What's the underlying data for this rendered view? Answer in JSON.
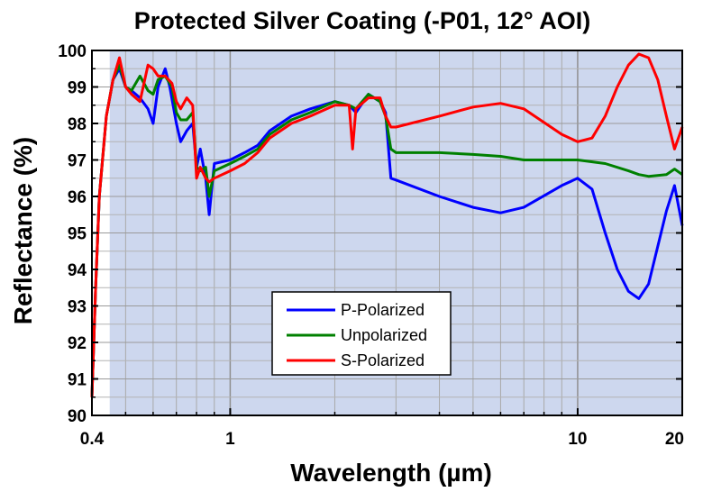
{
  "chart_data": {
    "type": "line",
    "title": "Protected Silver Coating (-P01, 12° AOI)",
    "xlabel": "Wavelength (µm)",
    "ylabel": "Reflectance (%)",
    "xscale": "log",
    "xlim": [
      0.4,
      20
    ],
    "ylim": [
      90,
      100
    ],
    "grid": true,
    "shaded_region": [
      0.45,
      20
    ],
    "xticks": [
      {
        "value": 0.4,
        "label": "0.4"
      },
      {
        "value": 1,
        "label": "1"
      },
      {
        "value": 10,
        "label": "10"
      },
      {
        "value": 20,
        "label": "20"
      }
    ],
    "yticks": [
      {
        "value": 90,
        "label": "90"
      },
      {
        "value": 91,
        "label": "91"
      },
      {
        "value": 92,
        "label": "92"
      },
      {
        "value": 93,
        "label": "93"
      },
      {
        "value": 94,
        "label": "94"
      },
      {
        "value": 95,
        "label": "95"
      },
      {
        "value": 96,
        "label": "96"
      },
      {
        "value": 97,
        "label": "97"
      },
      {
        "value": 98,
        "label": "98"
      },
      {
        "value": 99,
        "label": "99"
      },
      {
        "value": 100,
        "label": "100"
      }
    ],
    "legend_position": "bottom-center",
    "series": [
      {
        "name": "P-Polarized",
        "color": "#0000ff",
        "points": [
          [
            0.4,
            90.5
          ],
          [
            0.41,
            93.5
          ],
          [
            0.42,
            96.0
          ],
          [
            0.44,
            98.2
          ],
          [
            0.46,
            99.2
          ],
          [
            0.48,
            99.5
          ],
          [
            0.5,
            99.0
          ],
          [
            0.52,
            98.9
          ],
          [
            0.55,
            98.7
          ],
          [
            0.58,
            98.4
          ],
          [
            0.6,
            98.0
          ],
          [
            0.62,
            99.0
          ],
          [
            0.65,
            99.5
          ],
          [
            0.67,
            99.0
          ],
          [
            0.7,
            98.0
          ],
          [
            0.72,
            97.5
          ],
          [
            0.75,
            97.8
          ],
          [
            0.78,
            98.0
          ],
          [
            0.8,
            96.8
          ],
          [
            0.82,
            97.3
          ],
          [
            0.85,
            96.5
          ],
          [
            0.87,
            95.5
          ],
          [
            0.9,
            96.9
          ],
          [
            1.0,
            97.0
          ],
          [
            1.1,
            97.2
          ],
          [
            1.2,
            97.4
          ],
          [
            1.3,
            97.8
          ],
          [
            1.5,
            98.2
          ],
          [
            1.7,
            98.4
          ],
          [
            2.0,
            98.6
          ],
          [
            2.2,
            98.5
          ],
          [
            2.3,
            98.3
          ],
          [
            2.5,
            98.8
          ],
          [
            2.7,
            98.6
          ],
          [
            2.8,
            98.3
          ],
          [
            2.9,
            96.5
          ],
          [
            3.0,
            96.45
          ],
          [
            4.0,
            96.0
          ],
          [
            5.0,
            95.7
          ],
          [
            6.0,
            95.55
          ],
          [
            7.0,
            95.7
          ],
          [
            9.0,
            96.3
          ],
          [
            10.0,
            96.5
          ],
          [
            11.0,
            96.2
          ],
          [
            12.0,
            95.0
          ],
          [
            13.0,
            94.0
          ],
          [
            14.0,
            93.4
          ],
          [
            15.0,
            93.2
          ],
          [
            16.0,
            93.6
          ],
          [
            18.0,
            95.6
          ],
          [
            19.0,
            96.3
          ],
          [
            20.0,
            95.2
          ]
        ]
      },
      {
        "name": "Unpolarized",
        "color": "#008000",
        "points": [
          [
            0.4,
            90.5
          ],
          [
            0.41,
            93.5
          ],
          [
            0.42,
            96.0
          ],
          [
            0.44,
            98.2
          ],
          [
            0.46,
            99.2
          ],
          [
            0.48,
            99.6
          ],
          [
            0.5,
            99.0
          ],
          [
            0.52,
            98.9
          ],
          [
            0.55,
            99.3
          ],
          [
            0.58,
            98.9
          ],
          [
            0.6,
            98.8
          ],
          [
            0.62,
            99.2
          ],
          [
            0.65,
            99.3
          ],
          [
            0.68,
            99.0
          ],
          [
            0.7,
            98.3
          ],
          [
            0.72,
            98.1
          ],
          [
            0.75,
            98.1
          ],
          [
            0.78,
            98.3
          ],
          [
            0.8,
            96.8
          ],
          [
            0.82,
            96.7
          ],
          [
            0.85,
            96.8
          ],
          [
            0.87,
            96.0
          ],
          [
            0.9,
            96.7
          ],
          [
            1.0,
            96.9
          ],
          [
            1.1,
            97.1
          ],
          [
            1.2,
            97.3
          ],
          [
            1.3,
            97.7
          ],
          [
            1.5,
            98.1
          ],
          [
            1.7,
            98.3
          ],
          [
            2.0,
            98.6
          ],
          [
            2.2,
            98.5
          ],
          [
            2.3,
            98.4
          ],
          [
            2.5,
            98.8
          ],
          [
            2.7,
            98.6
          ],
          [
            2.8,
            98.2
          ],
          [
            2.9,
            97.3
          ],
          [
            3.0,
            97.2
          ],
          [
            4.0,
            97.2
          ],
          [
            5.0,
            97.15
          ],
          [
            6.0,
            97.1
          ],
          [
            7.0,
            97.0
          ],
          [
            9.0,
            97.0
          ],
          [
            10.0,
            97.0
          ],
          [
            12.0,
            96.9
          ],
          [
            14.0,
            96.7
          ],
          [
            15.0,
            96.6
          ],
          [
            16.0,
            96.55
          ],
          [
            18.0,
            96.6
          ],
          [
            19.0,
            96.75
          ],
          [
            20.0,
            96.6
          ]
        ]
      },
      {
        "name": "S-Polarized",
        "color": "#ff0000",
        "points": [
          [
            0.4,
            90.5
          ],
          [
            0.41,
            93.5
          ],
          [
            0.42,
            96.0
          ],
          [
            0.44,
            98.2
          ],
          [
            0.46,
            99.2
          ],
          [
            0.48,
            99.8
          ],
          [
            0.5,
            99.0
          ],
          [
            0.52,
            98.8
          ],
          [
            0.55,
            98.6
          ],
          [
            0.58,
            99.6
          ],
          [
            0.6,
            99.5
          ],
          [
            0.62,
            99.3
          ],
          [
            0.65,
            99.3
          ],
          [
            0.68,
            99.1
          ],
          [
            0.7,
            98.6
          ],
          [
            0.72,
            98.4
          ],
          [
            0.75,
            98.7
          ],
          [
            0.78,
            98.5
          ],
          [
            0.8,
            96.5
          ],
          [
            0.82,
            96.8
          ],
          [
            0.85,
            96.5
          ],
          [
            0.87,
            96.4
          ],
          [
            0.9,
            96.5
          ],
          [
            1.0,
            96.7
          ],
          [
            1.1,
            96.9
          ],
          [
            1.2,
            97.2
          ],
          [
            1.3,
            97.6
          ],
          [
            1.5,
            98.0
          ],
          [
            1.7,
            98.2
          ],
          [
            2.0,
            98.5
          ],
          [
            2.2,
            98.5
          ],
          [
            2.25,
            97.3
          ],
          [
            2.3,
            98.4
          ],
          [
            2.5,
            98.7
          ],
          [
            2.7,
            98.7
          ],
          [
            2.8,
            98.2
          ],
          [
            2.9,
            97.9
          ],
          [
            3.0,
            97.9
          ],
          [
            4.0,
            98.2
          ],
          [
            5.0,
            98.45
          ],
          [
            6.0,
            98.55
          ],
          [
            7.0,
            98.4
          ],
          [
            9.0,
            97.7
          ],
          [
            10.0,
            97.5
          ],
          [
            11.0,
            97.6
          ],
          [
            12.0,
            98.2
          ],
          [
            13.0,
            99.0
          ],
          [
            14.0,
            99.6
          ],
          [
            15.0,
            99.9
          ],
          [
            16.0,
            99.8
          ],
          [
            17.0,
            99.2
          ],
          [
            18.0,
            98.2
          ],
          [
            19.0,
            97.3
          ],
          [
            20.0,
            97.9
          ]
        ]
      }
    ]
  }
}
